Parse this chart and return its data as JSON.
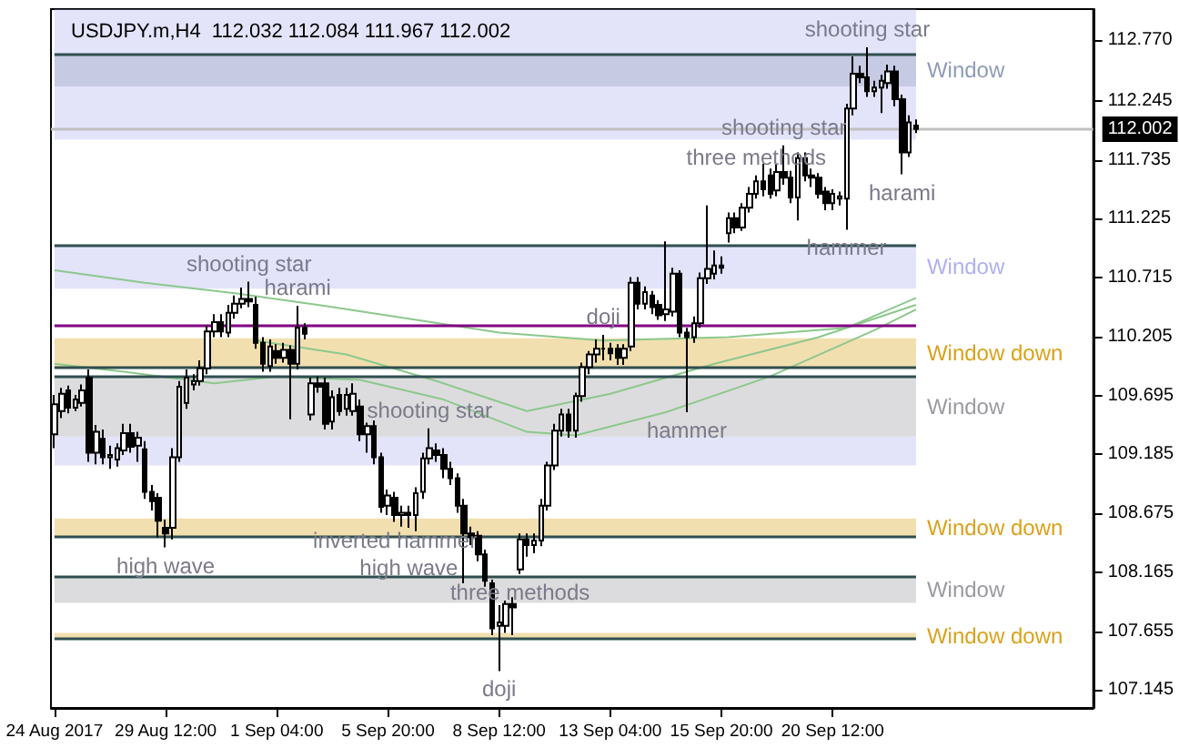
{
  "chart_data": {
    "type": "candlestick",
    "title": "USDJPY.m,H4  112.032 112.084 111.967 112.002",
    "categories": [
      "24 Aug 2017",
      null,
      null,
      null,
      null,
      null,
      null,
      null,
      null,
      null,
      null,
      null,
      null,
      null,
      null,
      null,
      "29 Aug 12:00",
      null,
      null,
      null,
      null,
      null,
      null,
      null,
      null,
      null,
      null,
      null,
      null,
      null,
      null,
      null,
      "1 Sep 04:00",
      null,
      null,
      null,
      null,
      null,
      null,
      null,
      null,
      null,
      null,
      null,
      null,
      null,
      null,
      null,
      "5 Sep 20:00",
      null,
      null,
      null,
      null,
      null,
      null,
      null,
      null,
      null,
      null,
      null,
      null,
      null,
      null,
      null,
      "8 Sep 12:00",
      null,
      null,
      null,
      null,
      null,
      null,
      null,
      null,
      null,
      null,
      null,
      null,
      null,
      null,
      null,
      "13 Sep 04:00",
      null,
      null,
      null,
      null,
      null,
      null,
      null,
      null,
      null,
      null,
      null,
      null,
      null,
      null,
      null,
      "15 Sep 20:00",
      null,
      null,
      null,
      null,
      null,
      null,
      null,
      null,
      null,
      null,
      null,
      null,
      null,
      null,
      null,
      "20 Sep 12:00",
      null,
      null,
      null,
      null,
      null,
      null,
      null,
      null,
      null,
      null,
      null,
      null,
      null,
      null,
      null,
      null,
      null,
      null,
      null,
      null,
      null,
      null,
      null,
      null,
      null,
      null,
      null,
      null,
      null,
      null,
      null,
      null,
      null,
      null,
      null,
      null,
      null
    ],
    "ylim": [
      106.99,
      113.04
    ],
    "yticks": [
      107.145,
      107.655,
      108.165,
      108.675,
      109.185,
      109.695,
      110.205,
      110.715,
      111.225,
      111.735,
      112.245,
      {
        "value": 112.77,
        "label": "112.770"
      }
    ],
    "grid": false,
    "series": [
      {
        "type": "line",
        "color": "#8cc88c",
        "values": [
          110.78,
          null,
          null,
          null,
          null,
          null,
          null,
          null,
          null,
          null,
          null,
          null,
          null,
          110.67,
          null,
          null,
          null,
          null,
          null,
          null,
          null,
          null,
          null,
          null,
          null,
          null,
          110.58,
          null,
          null,
          null,
          null,
          null,
          null,
          null,
          null,
          null,
          null,
          null,
          null,
          110.47,
          null,
          null,
          null,
          null,
          null,
          null,
          null,
          null,
          null,
          null,
          null,
          110.36,
          null,
          null,
          null,
          null,
          null,
          null,
          null,
          null,
          null,
          null,
          null,
          null,
          110.24,
          null,
          null,
          null,
          null,
          null,
          null,
          null,
          null,
          null,
          null,
          null,
          null,
          null,
          null,
          110.17,
          null,
          null,
          null,
          null,
          null,
          null,
          null,
          null,
          null,
          null,
          null,
          null,
          null,
          null,
          null,
          null,
          null,
          110.2,
          null,
          null,
          null,
          null,
          null,
          null,
          null,
          null,
          null,
          null,
          null,
          null,
          null,
          null,
          null,
          null,
          110.28,
          null,
          null,
          null,
          null,
          null,
          null,
          null,
          null,
          null,
          110.54,
          null,
          null,
          null,
          null,
          null,
          null,
          null,
          null,
          null,
          null,
          null,
          null,
          null,
          null,
          null,
          null,
          null,
          null,
          null,
          null,
          null,
          null,
          null,
          null,
          null
        ]
      },
      {
        "type": "line",
        "color": "#8cc88c",
        "values": [
          null,
          null,
          null,
          null,
          null,
          null,
          null,
          null,
          null,
          null,
          null,
          null,
          null,
          null,
          null,
          null,
          null,
          null,
          null,
          null,
          null,
          null,
          null,
          null,
          null,
          null,
          null,
          null,
          null,
          110.17,
          null,
          null,
          null,
          null,
          null,
          null,
          null,
          null,
          null,
          null,
          null,
          null,
          110.05,
          null,
          null,
          null,
          null,
          null,
          null,
          null,
          null,
          null,
          null,
          null,
          null,
          109.82,
          null,
          null,
          null,
          null,
          null,
          null,
          null,
          null,
          null,
          null,
          null,
          null,
          109.56,
          null,
          null,
          null,
          null,
          null,
          null,
          null,
          null,
          null,
          null,
          null,
          109.71,
          null,
          null,
          null,
          null,
          null,
          null,
          null,
          null,
          null,
          null,
          null,
          null,
          null,
          null,
          109.97,
          null,
          null,
          null,
          null,
          null,
          null,
          null,
          null,
          null,
          null,
          null,
          null,
          null,
          null,
          110.2,
          null,
          null,
          null,
          null,
          null,
          null,
          null,
          null,
          null,
          null,
          null,
          null,
          null,
          110.48,
          null,
          null,
          null,
          null,
          null,
          null,
          null,
          null,
          null,
          null,
          null,
          null,
          null,
          null,
          null,
          null,
          null,
          null,
          null,
          null,
          null,
          null,
          null,
          null,
          null
        ]
      },
      {
        "type": "line",
        "color": "#8cc88c",
        "values": [
          109.97,
          null,
          null,
          null,
          null,
          null,
          null,
          null,
          null,
          null,
          109.9,
          null,
          null,
          null,
          null,
          null,
          null,
          null,
          null,
          null,
          null,
          null,
          null,
          109.8,
          null,
          null,
          null,
          null,
          null,
          null,
          null,
          null,
          109.86,
          null,
          null,
          null,
          null,
          null,
          null,
          null,
          null,
          null,
          null,
          null,
          109.83,
          null,
          null,
          null,
          null,
          null,
          null,
          null,
          null,
          null,
          null,
          null,
          109.66,
          null,
          null,
          null,
          null,
          null,
          null,
          null,
          null,
          null,
          null,
          null,
          109.38,
          null,
          null,
          null,
          null,
          null,
          null,
          109.35,
          null,
          null,
          null,
          null,
          null,
          null,
          null,
          null,
          null,
          null,
          null,
          null,
          109.55,
          null,
          null,
          null,
          null,
          null,
          null,
          null,
          null,
          null,
          null,
          null,
          null,
          null,
          null,
          109.86,
          null,
          null,
          null,
          null,
          null,
          null,
          null,
          null,
          null,
          null,
          null,
          null,
          null,
          null,
          110.26,
          null,
          null,
          null,
          null,
          null,
          110.44,
          null,
          null,
          null,
          null,
          null,
          null,
          null,
          null,
          null,
          null,
          null,
          null,
          null,
          null,
          null,
          null,
          null,
          null,
          null,
          null,
          null,
          null,
          null,
          null,
          null
        ]
      },
      {
        "color": "#000000",
        "ohlc": [
          [
            109.36,
            109.7,
            109.24,
            109.62
          ],
          [
            109.56,
            109.76,
            109.5,
            109.71
          ],
          [
            109.74,
            109.78,
            109.54,
            109.59
          ],
          [
            109.59,
            109.7,
            109.56,
            109.66
          ],
          [
            109.63,
            109.79,
            109.6,
            109.74
          ],
          [
            109.85,
            109.92,
            109.12,
            109.2
          ],
          [
            109.2,
            109.44,
            109.1,
            109.38
          ],
          [
            109.32,
            109.4,
            109.1,
            109.16
          ],
          [
            109.16,
            109.26,
            109.06,
            109.18
          ],
          [
            109.14,
            109.28,
            109.08,
            109.24
          ],
          [
            109.22,
            109.45,
            109.18,
            109.37
          ],
          [
            109.37,
            109.45,
            109.2,
            109.25
          ],
          [
            109.26,
            109.38,
            109.12,
            109.33
          ],
          [
            109.23,
            109.3,
            108.8,
            108.86
          ],
          [
            108.86,
            108.92,
            108.7,
            108.78
          ],
          [
            108.81,
            108.85,
            108.47,
            108.61
          ],
          [
            108.55,
            108.62,
            108.38,
            108.5
          ],
          [
            108.55,
            109.24,
            108.45,
            109.16
          ],
          [
            109.16,
            109.82,
            109.12,
            109.77
          ],
          [
            109.63,
            109.92,
            109.58,
            109.85
          ],
          [
            109.79,
            109.88,
            109.74,
            109.82
          ],
          [
            109.82,
            110.0,
            109.78,
            109.93
          ],
          [
            109.93,
            110.3,
            109.88,
            110.25
          ],
          [
            110.25,
            110.4,
            110.2,
            110.33
          ],
          [
            110.33,
            110.4,
            110.2,
            110.25
          ],
          [
            110.24,
            110.48,
            110.2,
            110.41
          ],
          [
            110.41,
            110.56,
            110.36,
            110.49
          ],
          [
            110.49,
            110.63,
            110.45,
            110.53
          ],
          [
            110.53,
            110.68,
            110.46,
            110.51
          ],
          [
            110.48,
            110.55,
            110.1,
            110.15
          ],
          [
            110.15,
            110.2,
            109.9,
            109.97
          ],
          [
            109.95,
            110.18,
            109.9,
            110.12
          ],
          [
            110.08,
            110.14,
            109.97,
            110.02
          ],
          [
            110.02,
            110.15,
            109.98,
            110.09
          ],
          [
            110.09,
            110.13,
            109.49,
            109.97
          ],
          [
            109.97,
            110.47,
            109.92,
            110.28
          ],
          [
            110.28,
            110.32,
            110.18,
            110.23
          ],
          [
            109.53,
            109.85,
            109.48,
            109.8
          ],
          [
            109.8,
            109.86,
            109.72,
            109.77
          ],
          [
            109.8,
            109.85,
            109.4,
            109.45
          ],
          [
            109.47,
            109.74,
            109.4,
            109.68
          ],
          [
            109.7,
            109.76,
            109.52,
            109.56
          ],
          [
            109.58,
            109.76,
            109.52,
            109.7
          ],
          [
            109.56,
            109.8,
            109.52,
            109.71
          ],
          [
            109.6,
            109.66,
            109.3,
            109.36
          ],
          [
            109.36,
            109.46,
            109.2,
            109.43
          ],
          [
            109.43,
            109.48,
            109.1,
            109.16
          ],
          [
            109.16,
            109.2,
            108.68,
            108.73
          ],
          [
            108.74,
            108.88,
            108.66,
            108.83
          ],
          [
            108.81,
            108.86,
            108.6,
            108.66
          ],
          [
            108.66,
            108.74,
            108.56,
            108.68
          ],
          [
            108.68,
            108.74,
            108.55,
            108.66
          ],
          [
            108.66,
            108.9,
            108.52,
            108.85
          ],
          [
            108.86,
            109.2,
            108.8,
            109.15
          ],
          [
            109.15,
            109.41,
            109.1,
            109.24
          ],
          [
            109.22,
            109.28,
            109.12,
            109.18
          ],
          [
            109.18,
            109.24,
            108.98,
            109.06
          ],
          [
            109.06,
            109.12,
            108.92,
            108.98
          ],
          [
            108.98,
            109.02,
            108.68,
            108.74
          ],
          [
            108.74,
            108.8,
            108.07,
            108.5
          ],
          [
            108.5,
            108.56,
            108.4,
            108.47
          ],
          [
            108.48,
            108.52,
            108.26,
            108.32
          ],
          [
            108.32,
            108.36,
            108.04,
            108.09
          ],
          [
            108.07,
            108.1,
            107.62,
            107.68
          ],
          [
            107.7,
            107.88,
            107.31,
            107.73
          ],
          [
            107.7,
            107.92,
            107.64,
            107.89
          ],
          [
            107.89,
            107.95,
            107.62,
            107.86
          ],
          [
            108.19,
            108.5,
            108.15,
            108.45
          ],
          [
            108.45,
            108.5,
            108.3,
            108.4
          ],
          [
            108.4,
            108.5,
            108.33,
            108.44
          ],
          [
            108.44,
            108.8,
            108.39,
            108.74
          ],
          [
            108.74,
            109.12,
            108.7,
            109.09
          ],
          [
            109.09,
            109.45,
            109.05,
            109.39
          ],
          [
            109.39,
            109.58,
            109.34,
            109.53
          ],
          [
            109.53,
            109.58,
            109.33,
            109.39
          ],
          [
            109.39,
            109.72,
            109.33,
            109.69
          ],
          [
            109.69,
            109.98,
            109.64,
            109.94
          ],
          [
            109.94,
            110.08,
            109.88,
            110.05
          ],
          [
            110.05,
            110.18,
            109.98,
            110.1
          ],
          [
            110.1,
            110.22,
            110.0,
            110.1
          ],
          [
            110.1,
            110.15,
            110.0,
            110.06
          ],
          [
            110.1,
            110.14,
            109.96,
            110.02
          ],
          [
            110.02,
            110.14,
            109.96,
            110.1
          ],
          [
            110.12,
            110.72,
            110.08,
            110.67
          ],
          [
            110.67,
            110.72,
            110.44,
            110.49
          ],
          [
            110.49,
            110.64,
            110.44,
            110.59
          ],
          [
            110.56,
            110.6,
            110.4,
            110.46
          ],
          [
            110.48,
            110.52,
            110.35,
            110.39
          ],
          [
            110.4,
            111.03,
            110.34,
            110.44
          ],
          [
            110.42,
            110.8,
            110.38,
            110.75
          ],
          [
            110.75,
            110.78,
            110.2,
            110.24
          ],
          [
            110.24,
            110.28,
            109.55,
            110.2
          ],
          [
            110.2,
            110.38,
            110.15,
            110.32
          ],
          [
            110.32,
            110.76,
            110.28,
            110.71
          ],
          [
            110.71,
            111.34,
            110.66,
            110.79
          ],
          [
            110.75,
            110.95,
            110.7,
            110.82
          ],
          [
            110.82,
            110.9,
            110.75,
            110.8
          ],
          [
            111.1,
            111.28,
            111.02,
            111.23
          ],
          [
            111.23,
            111.28,
            111.1,
            111.15
          ],
          [
            111.15,
            111.36,
            111.12,
            111.32
          ],
          [
            111.32,
            111.5,
            111.28,
            111.44
          ],
          [
            111.44,
            111.6,
            111.4,
            111.55
          ],
          [
            111.55,
            111.7,
            111.42,
            111.48
          ],
          [
            111.6,
            111.66,
            111.4,
            111.44
          ],
          [
            111.47,
            111.7,
            111.42,
            111.63
          ],
          [
            111.63,
            111.86,
            111.52,
            111.58
          ],
          [
            111.58,
            111.64,
            111.36,
            111.41
          ],
          [
            111.41,
            111.8,
            111.21,
            111.75
          ],
          [
            111.75,
            111.8,
            111.55,
            111.6
          ],
          [
            111.6,
            111.66,
            111.5,
            111.58
          ],
          [
            111.58,
            111.62,
            111.4,
            111.44
          ],
          [
            111.46,
            111.5,
            111.3,
            111.36
          ],
          [
            111.36,
            111.48,
            111.3,
            111.44
          ],
          [
            111.4,
            111.46,
            111.34,
            111.42
          ],
          [
            111.4,
            112.22,
            111.13,
            112.18
          ],
          [
            112.18,
            112.63,
            112.12,
            112.48
          ],
          [
            112.48,
            112.55,
            112.4,
            112.45
          ],
          [
            112.45,
            112.71,
            112.28,
            112.33
          ],
          [
            112.33,
            112.42,
            112.28,
            112.36
          ],
          [
            112.36,
            112.47,
            112.14,
            112.42
          ],
          [
            112.4,
            112.56,
            112.35,
            112.5
          ],
          [
            112.5,
            112.55,
            112.2,
            112.26
          ],
          [
            112.26,
            112.3,
            111.61,
            111.8
          ],
          [
            111.8,
            112.12,
            111.76,
            112.06
          ],
          [
            112.032,
            112.084,
            111.967,
            112.002
          ],
          null,
          null,
          null,
          null,
          null,
          null,
          null,
          null,
          null,
          null,
          null,
          null,
          null,
          null,
          null,
          null,
          null,
          null,
          null,
          null,
          null,
          null,
          null,
          null,
          null
        ]
      }
    ],
    "bands": [
      {
        "axis": "y",
        "from": 111.91,
        "to": 113.04,
        "color": "#b0b0f0"
      },
      {
        "axis": "y",
        "from": 112.37,
        "to": 112.65,
        "label": "Window",
        "color": "#8f9bb8"
      },
      {
        "axis": "y",
        "from": 110.62,
        "to": 111.0,
        "label": "Window",
        "color": "#b0b0f0"
      },
      {
        "axis": "y",
        "from": 109.94,
        "to": 110.19,
        "label": "Window down",
        "color": "#d9a21b"
      },
      {
        "axis": "y",
        "from": 109.34,
        "to": 109.86,
        "label": "Window",
        "color": "#9a9aa0"
      },
      {
        "axis": "y",
        "from": 109.09,
        "to": 109.34,
        "color": "#b0b0f0"
      },
      {
        "axis": "y",
        "from": 108.47,
        "to": 108.63,
        "label": "Window down",
        "color": "#d9a21b"
      },
      {
        "axis": "y",
        "from": 107.9,
        "to": 108.13,
        "label": "Window",
        "color": "#9a9aa0"
      },
      {
        "axis": "y",
        "from": 107.59,
        "to": 107.64,
        "label": "Window down",
        "color": "#d9a21b"
      }
    ],
    "ref_lines": [
      {
        "axis": "y",
        "value": 112.002,
        "label": "112.002",
        "color": "#c0c0c0"
      },
      {
        "axis": "y",
        "value": 110.31,
        "color": "#800080"
      },
      {
        "axis": "y",
        "value": 112.65,
        "color": "#2f4f4f"
      },
      {
        "axis": "y",
        "value": 110.99,
        "color": "#2f4f4f"
      },
      {
        "axis": "y",
        "value": 109.94,
        "color": "#2f4f4f"
      },
      {
        "axis": "y",
        "value": 109.86,
        "color": "#2f4f4f"
      },
      {
        "axis": "y",
        "value": 108.47,
        "color": "#2f4f4f"
      },
      {
        "axis": "y",
        "value": 108.13,
        "color": "#2f4f4f"
      },
      {
        "axis": "y",
        "value": 107.59,
        "color": "#2f4f4f"
      }
    ],
    "annotations": [
      {
        "text": "shooting star",
        "y": 112.71
      },
      {
        "text": "shooting star",
        "y": 111.86
      },
      {
        "text": "three methods",
        "y": 111.6
      },
      {
        "text": "harami",
        "y": 111.61
      },
      {
        "text": "hammer",
        "y": 111.13
      },
      {
        "text": "shooting star",
        "y": 110.68
      },
      {
        "text": "harami",
        "y": 110.47
      },
      {
        "text": "doji",
        "y": 110.22
      },
      {
        "text": "shooting star",
        "y": 109.41
      },
      {
        "text": "hammer",
        "y": 109.55
      },
      {
        "text": "inverted hammer",
        "y": 108.6
      },
      {
        "text": "high wave",
        "y": 108.38
      },
      {
        "text": "high wave",
        "y": 108.55
      },
      {
        "text": "three methods",
        "y": 108.15
      },
      {
        "text": "doji",
        "y": 107.31
      }
    ]
  }
}
